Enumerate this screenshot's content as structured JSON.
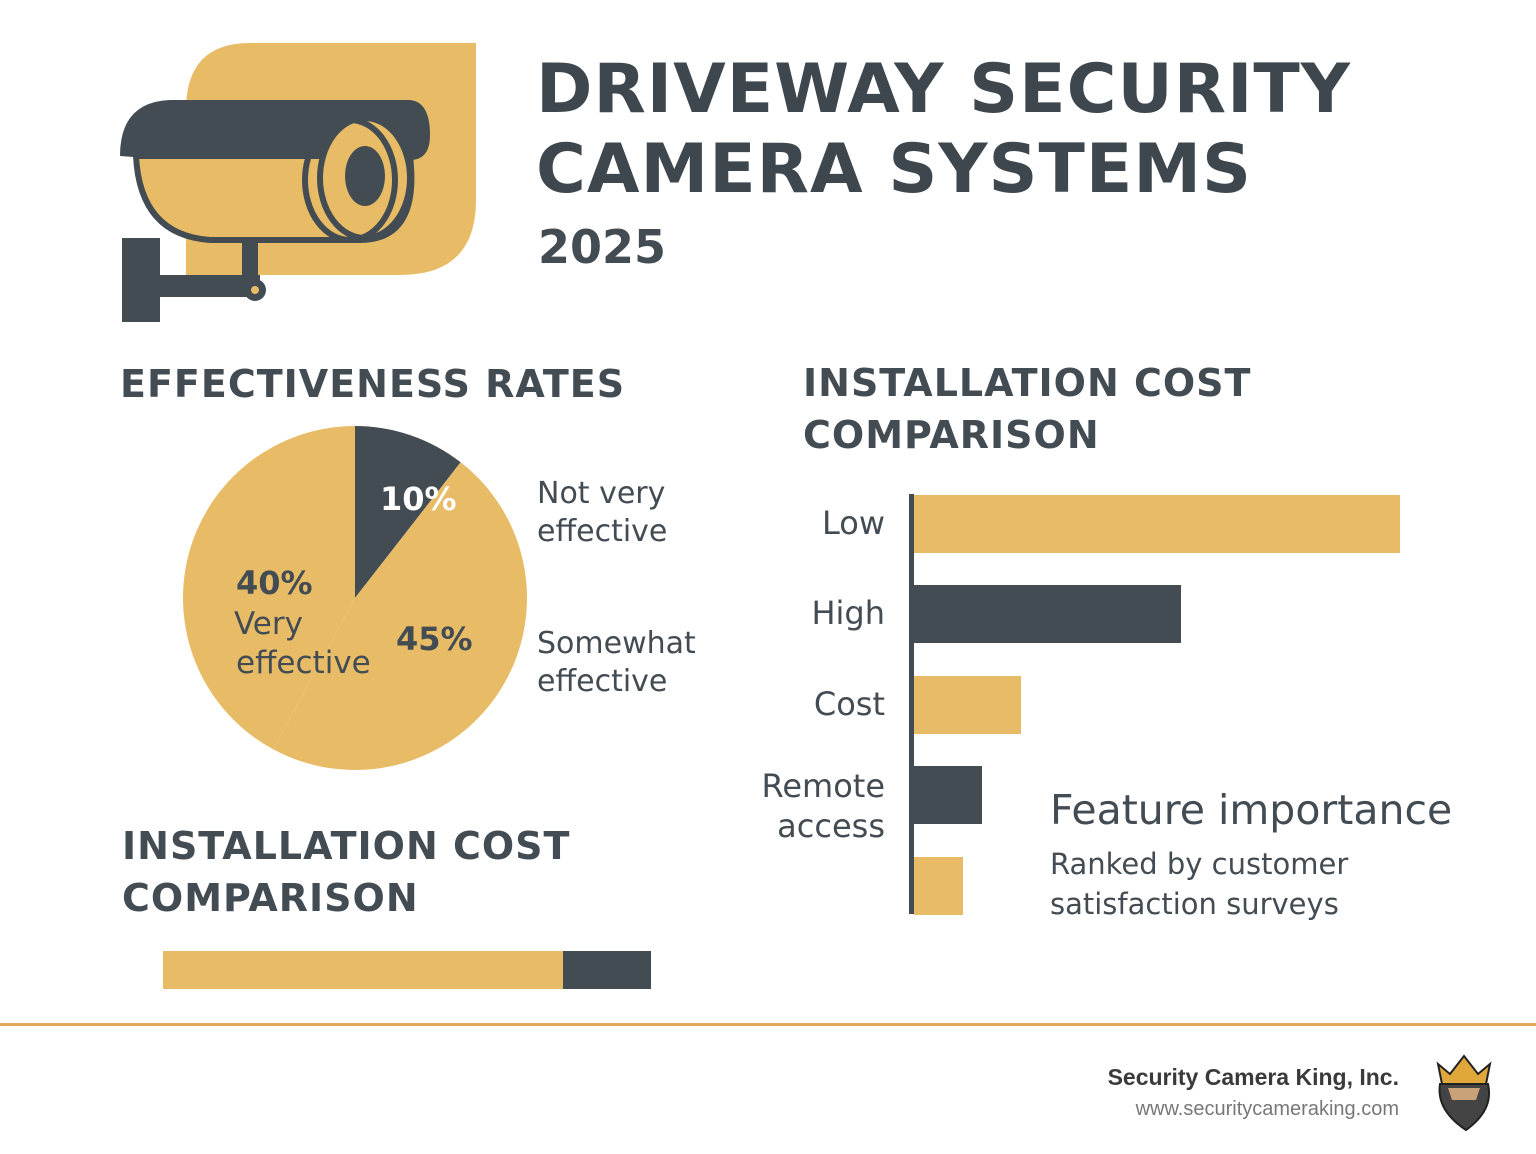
{
  "colors": {
    "gold": "#E8BC66",
    "dark": "#434C53",
    "accent_line": "#E3A95A"
  },
  "header": {
    "title_line1": "DRIVEWAY SECURITY",
    "title_line2": "CAMERA SYSTEMS",
    "year": "2025",
    "icon": "security-camera-icon"
  },
  "chart_data": [
    {
      "type": "pie",
      "title": "EFFECTIVENESS RATES",
      "slices": [
        {
          "label": "Not very effective",
          "value": 10,
          "display": "10%",
          "color": "#434C53"
        },
        {
          "label": "Somewhat effective",
          "value": 45,
          "display": "45%",
          "color": "#E8BC66"
        },
        {
          "label": "Very effective",
          "value": 40,
          "display": "40%",
          "color": "#E8BC66"
        }
      ],
      "labels": {
        "not_very": "Not very\neffective",
        "somewhat": "Somewhat\neffective",
        "very_pct": "40%",
        "very_l1": "Very",
        "very_l2": "effective",
        "somewhat_pct": "45%",
        "not_very_pct": "10%"
      }
    },
    {
      "type": "bar",
      "orientation": "horizontal",
      "title": "INSTALLATION COST COMPARISON",
      "categories": [
        "Low",
        "High",
        "Cost",
        "Remote access",
        ""
      ],
      "values": [
        100,
        55,
        22,
        14,
        10
      ],
      "colors": [
        "#E8BC66",
        "#434C53",
        "#E8BC66",
        "#434C53",
        "#E8BC66"
      ],
      "annotation": {
        "title": "Feature importance",
        "subtitle_l1": "Ranked by customer",
        "subtitle_l2": "satisfaction surveys"
      }
    },
    {
      "type": "bar",
      "orientation": "horizontal",
      "stacked": true,
      "title": "INSTALLATION COST COMPARISON",
      "segments": [
        {
          "value": 82,
          "color": "#E8BC66"
        },
        {
          "value": 18,
          "color": "#434C53"
        }
      ]
    }
  ],
  "footer": {
    "company": "Security Camera King, Inc.",
    "url": "www.securitycameraking.com",
    "logo": "king-logo-icon"
  }
}
